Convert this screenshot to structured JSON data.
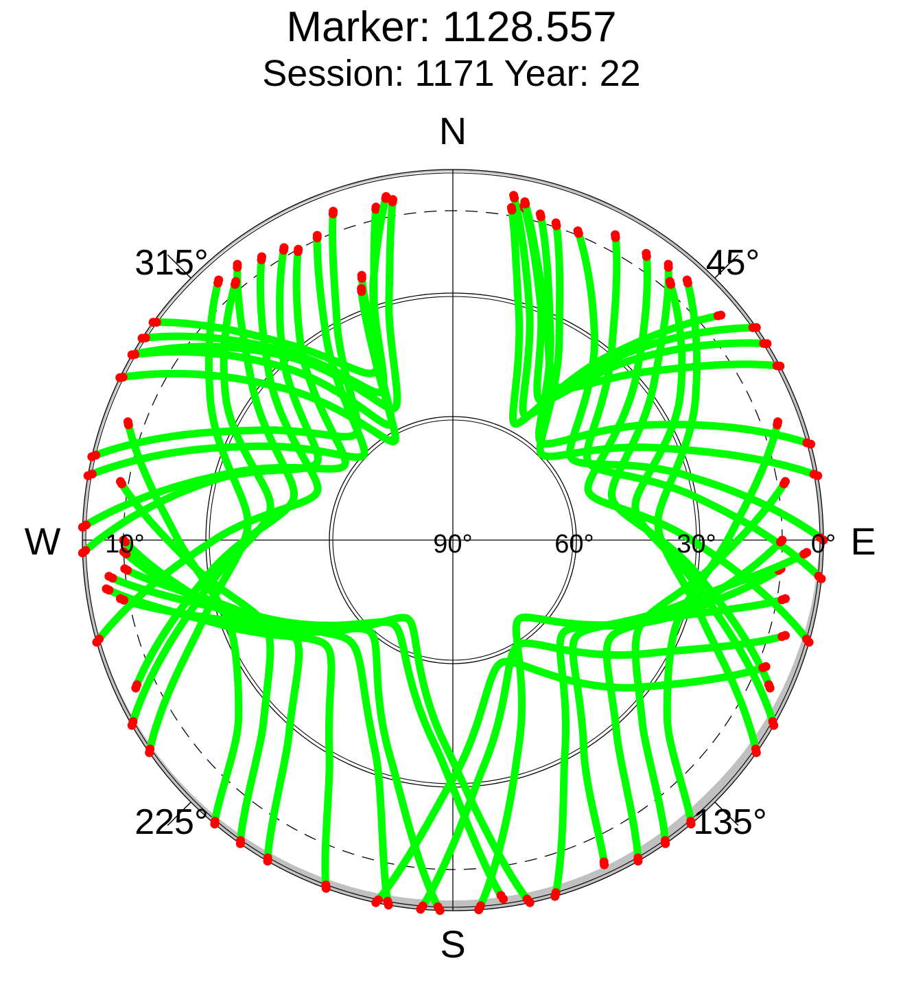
{
  "chart_data": {
    "type": "polar-skyplot",
    "title": "Marker: 1128.557",
    "subtitle": "Session: 1171 Year: 22",
    "cardinal_labels": {
      "north": "N",
      "south": "S",
      "east": "E",
      "west": "W"
    },
    "azimuth_labels": [
      {
        "azimuth": 45,
        "text": "45°"
      },
      {
        "azimuth": 135,
        "text": "135°"
      },
      {
        "azimuth": 225,
        "text": "225°"
      },
      {
        "azimuth": 315,
        "text": "315°"
      }
    ],
    "elevation_labels": [
      {
        "elevation": 0,
        "text": "0°",
        "side": "east"
      },
      {
        "elevation": 30,
        "text": "30°",
        "side": "east"
      },
      {
        "elevation": 60,
        "text": "60°",
        "side": "east"
      },
      {
        "elevation": 90,
        "text": "90°",
        "side": "center"
      },
      {
        "elevation": 10,
        "text": "10°",
        "side": "west"
      }
    ],
    "elevation_rings": [
      0,
      30,
      60
    ],
    "cutoff_elevation": 10,
    "colors": {
      "track": "#00ff00",
      "edge_points": "#ff0000",
      "mask": "#c0c0c0",
      "grid": "#000000"
    },
    "tracks": [
      {
        "az": [
          300,
          318,
          336,
          345,
          350
        ],
        "el": [
          0,
          30,
          55,
          30,
          6
        ]
      },
      {
        "az": [
          303,
          318,
          334,
          342,
          347
        ],
        "el": [
          0,
          28,
          50,
          28,
          7
        ]
      },
      {
        "az": [
          306,
          320,
          335,
          343,
          349
        ],
        "el": [
          0,
          28,
          45,
          24,
          5
        ]
      },
      {
        "az": [
          300,
          316,
          332,
          341
        ],
        "el": [
          0,
          32,
          58,
          22
        ]
      },
      {
        "az": [
          296,
          312,
          330,
          340
        ],
        "el": [
          0,
          35,
          62,
          25
        ]
      },
      {
        "az": [
          283,
          299,
          318,
          332,
          340
        ],
        "el": [
          0,
          35,
          55,
          30,
          5
        ]
      },
      {
        "az": [
          280,
          296,
          314,
          328,
          336
        ],
        "el": [
          0,
          38,
          60,
          32,
          9
        ]
      },
      {
        "az": [
          272,
          287,
          305,
          322,
          332
        ],
        "el": [
          0,
          34,
          58,
          30,
          10
        ]
      },
      {
        "az": [
          268,
          284,
          300,
          318,
          330
        ],
        "el": [
          0,
          30,
          52,
          28,
          8
        ]
      },
      {
        "az": [
          254,
          270,
          290,
          312,
          326
        ],
        "el": [
          0,
          32,
          55,
          30,
          7
        ]
      },
      {
        "az": [
          245,
          262,
          285,
          308,
          322
        ],
        "el": [
          5,
          30,
          50,
          28,
          5
        ]
      },
      {
        "az": [
          240,
          258,
          280,
          302,
          320
        ],
        "el": [
          0,
          28,
          45,
          25,
          8
        ]
      },
      {
        "az": [
          235,
          252,
          275,
          300,
          318
        ],
        "el": [
          0,
          26,
          40,
          22,
          5
        ]
      },
      {
        "az": [
          55,
          42,
          30,
          18,
          10
        ],
        "el": [
          0,
          30,
          55,
          30,
          5
        ]
      },
      {
        "az": [
          58,
          45,
          32,
          20,
          12
        ],
        "el": [
          0,
          28,
          50,
          28,
          7
        ]
      },
      {
        "az": [
          50,
          40,
          28,
          16,
          10
        ],
        "el": [
          5,
          32,
          58,
          32,
          8
        ]
      },
      {
        "az": [
          62,
          50,
          34,
          20,
          12
        ],
        "el": [
          0,
          26,
          45,
          26,
          6
        ]
      },
      {
        "az": [
          75,
          60,
          42,
          25,
          15
        ],
        "el": [
          0,
          34,
          58,
          34,
          8
        ]
      },
      {
        "az": [
          80,
          66,
          46,
          28,
          18
        ],
        "el": [
          0,
          35,
          60,
          35,
          9
        ]
      },
      {
        "az": [
          90,
          74,
          55,
          35,
          22
        ],
        "el": [
          0,
          32,
          55,
          30,
          9
        ]
      },
      {
        "az": [
          96,
          80,
          60,
          40,
          28
        ],
        "el": [
          0,
          30,
          52,
          30,
          6
        ]
      },
      {
        "az": [
          106,
          90,
          70,
          48,
          34
        ],
        "el": [
          0,
          32,
          55,
          30,
          6
        ]
      },
      {
        "az": [
          115,
          98,
          75,
          52,
          38
        ],
        "el": [
          5,
          30,
          50,
          28,
          5
        ]
      },
      {
        "az": [
          120,
          102,
          80,
          58,
          40
        ],
        "el": [
          0,
          28,
          45,
          25,
          8
        ]
      },
      {
        "az": [
          125,
          108,
          85,
          60,
          42
        ],
        "el": [
          0,
          26,
          40,
          22,
          5
        ]
      },
      {
        "az": [
          200,
          210,
          230,
          250,
          262
        ],
        "el": [
          0,
          30,
          50,
          30,
          5
        ]
      },
      {
        "az": [
          190,
          200,
          225,
          252,
          265
        ],
        "el": [
          0,
          35,
          55,
          35,
          10
        ]
      },
      {
        "az": [
          182,
          196,
          222,
          250,
          268
        ],
        "el": [
          0,
          35,
          60,
          35,
          10
        ]
      },
      {
        "az": [
          172,
          185,
          215,
          248,
          264
        ],
        "el": [
          2,
          40,
          65,
          40,
          6
        ]
      },
      {
        "az": [
          168,
          182,
          210,
          245,
          260
        ],
        "el": [
          0,
          40,
          68,
          40,
          8
        ]
      },
      {
        "az": [
          192,
          180,
          158,
          128,
          112
        ],
        "el": [
          0,
          32,
          58,
          32,
          8
        ]
      },
      {
        "az": [
          185,
          172,
          148,
          120,
          106
        ],
        "el": [
          0,
          35,
          60,
          35,
          6
        ]
      },
      {
        "az": [
          176,
          162,
          140,
          112,
          100
        ],
        "el": [
          0,
          38,
          65,
          38,
          8
        ]
      },
      {
        "az": [
          164,
          152,
          130,
          108,
          95
        ],
        "el": [
          0,
          32,
          55,
          32,
          10
        ]
      },
      {
        "az": [
          155,
          148,
          128,
          104,
          92
        ],
        "el": [
          3,
          30,
          52,
          30,
          4
        ]
      },
      {
        "az": [
          210,
          220,
          238,
          256,
          270
        ],
        "el": [
          0,
          28,
          45,
          28,
          10
        ]
      },
      {
        "az": [
          150,
          140,
          122,
          104,
          90
        ],
        "el": [
          0,
          28,
          45,
          28,
          10
        ]
      },
      {
        "az": [
          215,
          226,
          245,
          265,
          280
        ],
        "el": [
          0,
          26,
          40,
          26,
          8
        ]
      },
      {
        "az": [
          145,
          134,
          115,
          95,
          80
        ],
        "el": [
          0,
          26,
          40,
          26,
          8
        ]
      },
      {
        "az": [
          220,
          230,
          250,
          272,
          290
        ],
        "el": [
          0,
          22,
          32,
          22,
          6
        ]
      },
      {
        "az": [
          140,
          130,
          110,
          88,
          70
        ],
        "el": [
          0,
          22,
          32,
          22,
          6
        ]
      }
    ],
    "mask_profile": [
      {
        "az": 0,
        "el": 0.5
      },
      {
        "az": 45,
        "el": 0.8
      },
      {
        "az": 90,
        "el": 1.0
      },
      {
        "az": 110,
        "el": 2.0
      },
      {
        "az": 135,
        "el": 3.0
      },
      {
        "az": 160,
        "el": 2.5
      },
      {
        "az": 180,
        "el": 2.5
      },
      {
        "az": 210,
        "el": 2.0
      },
      {
        "az": 225,
        "el": 1.5
      },
      {
        "az": 270,
        "el": 0.6
      },
      {
        "az": 315,
        "el": 0.5
      },
      {
        "az": 360,
        "el": 0.5
      }
    ]
  }
}
